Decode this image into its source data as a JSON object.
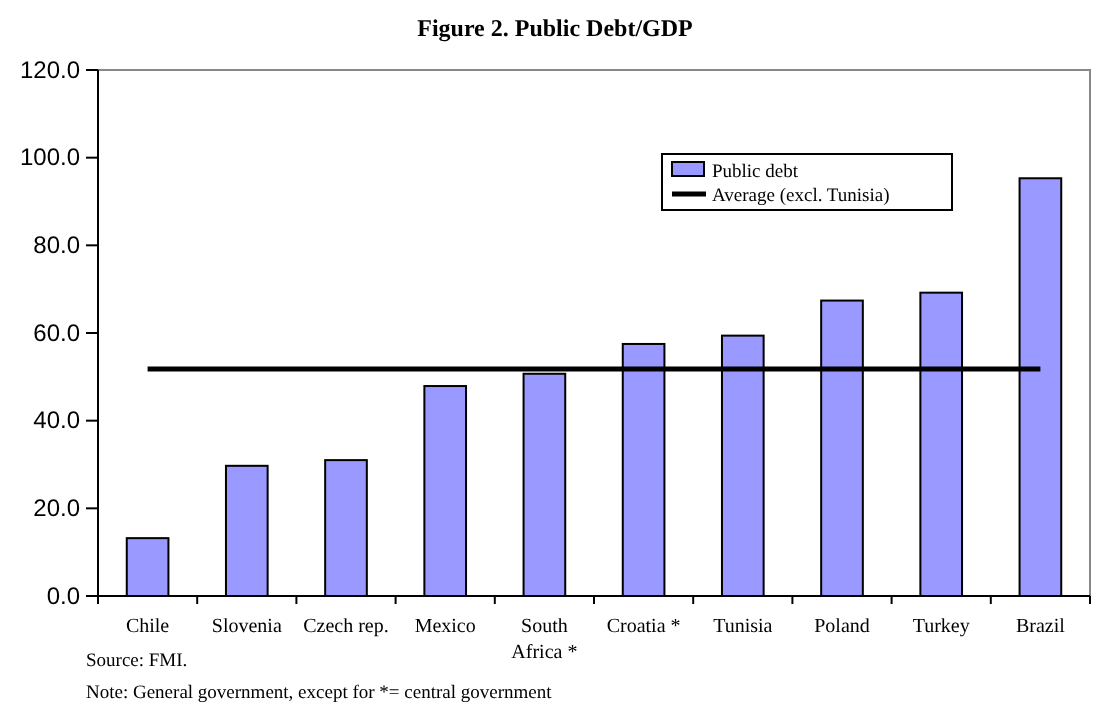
{
  "chart_data": {
    "type": "bar",
    "title": "Figure 2. Public Debt/GDP",
    "categories": [
      "Chile",
      "Slovenia",
      "Czech rep.",
      "Mexico",
      "South Africa *",
      "Croatia *",
      "Tunisia",
      "Poland",
      "Turkey",
      "Brazil"
    ],
    "series": [
      {
        "name": "Public debt",
        "color": "#9999ff",
        "values": [
          13.2,
          29.7,
          31.0,
          47.9,
          50.7,
          57.5,
          59.4,
          67.4,
          69.2,
          95.3
        ]
      },
      {
        "name": "Average (excl. Tunisia)",
        "type": "line",
        "color": "#000000",
        "values": [
          51.8,
          51.8,
          51.8,
          51.8,
          51.8,
          51.8,
          51.8,
          51.8,
          51.8,
          51.8
        ]
      }
    ],
    "ylim": [
      0,
      120
    ],
    "yticks": [
      {
        "value": 0,
        "label": "0.0"
      },
      {
        "value": 20,
        "label": "20.0"
      },
      {
        "value": 40,
        "label": "40.0"
      },
      {
        "value": 60,
        "label": "60.0"
      },
      {
        "value": 80,
        "label": "80.0"
      },
      {
        "value": 100,
        "label": "100.0"
      },
      {
        "value": 120,
        "label": "120.0"
      }
    ],
    "grid": false,
    "legend": "top right",
    "marker": "none",
    "line_style": "solid",
    "annotations": [
      "Source: FMI.",
      "Note: General government, except for  *= central government"
    ]
  }
}
